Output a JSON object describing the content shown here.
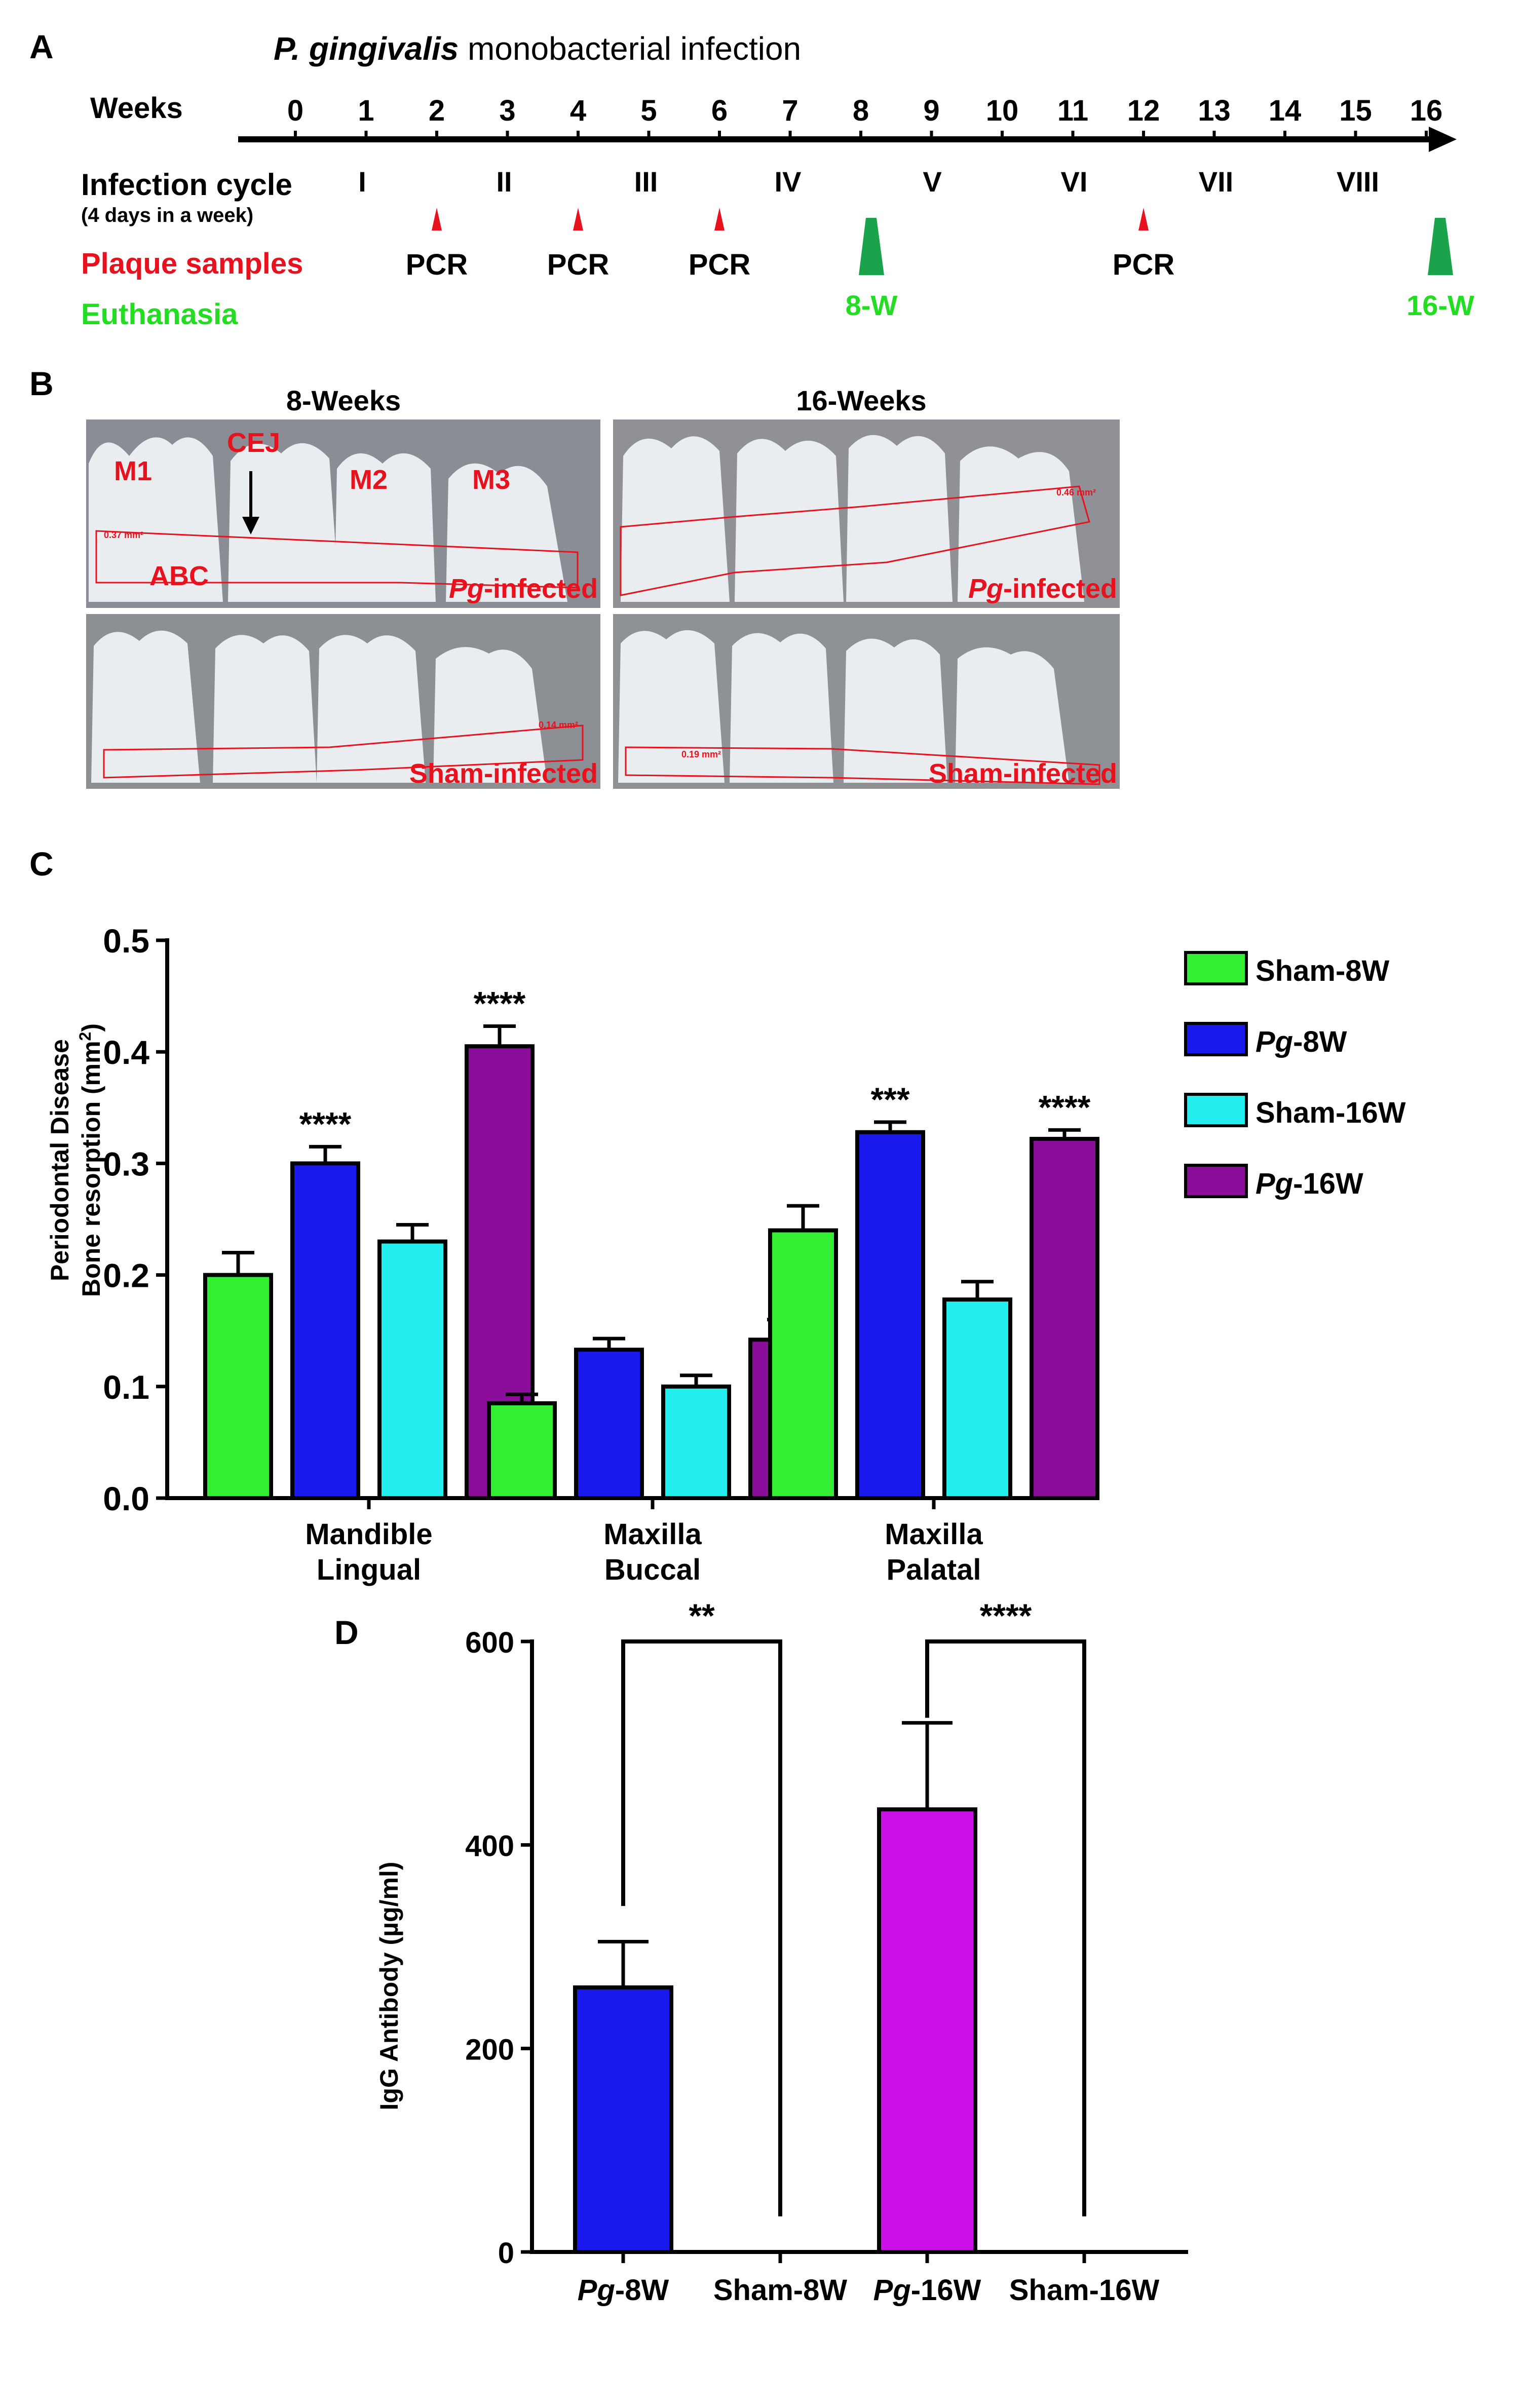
{
  "panel_labels": {
    "a": "A",
    "b": "B",
    "c": "C",
    "d": "D"
  },
  "timeline": {
    "title_italic": "P. gingivalis",
    "title_rest": " monobacterial infection",
    "weeks_label": "Weeks",
    "weeks": [
      "0",
      "1",
      "2",
      "3",
      "4",
      "5",
      "6",
      "7",
      "8",
      "9",
      "10",
      "11",
      "12",
      "13",
      "14",
      "15",
      "16"
    ],
    "infection_label": "Infection cycle",
    "infection_sub": "(4 days in a week)",
    "cycles": [
      "I",
      "II",
      "III",
      "IV",
      "V",
      "VI",
      "VII",
      "VIII"
    ],
    "plaque_label": "Plaque samples",
    "pcr_label": "PCR",
    "euthanasia_label": "Euthanasia",
    "euth_8": "8-W",
    "euth_16": "16-W",
    "colors": {
      "plaque": "#e8121f",
      "euthanasia": "#22dd22",
      "euth_marker": "#1aa34a"
    }
  },
  "photos": {
    "col_8": "8-Weeks",
    "col_16": "16-Weeks",
    "pg_infected_italic": "Pg",
    "pg_infected_rest": "-infected",
    "sham_infected": "Sham-infected",
    "m1": "M1",
    "m2": "M2",
    "m3": "M3",
    "cej": "CEJ",
    "abc": "ABC",
    "area_tl": "0.37 mm²",
    "area_tr": "0.46 mm²",
    "area_bl": "0.14 mm²",
    "area_br": "0.19 mm²"
  },
  "chart_data": [
    {
      "type": "bar",
      "title": "",
      "ylabel_line1": "Periodontal Disease",
      "ylabel_line2": "Bone resorption (mm",
      "ylabel_sup": "2",
      "ylabel_close": ")",
      "ylim": [
        0,
        0.5
      ],
      "yticks": [
        "0.0",
        "0.1",
        "0.2",
        "0.3",
        "0.4",
        "0.5"
      ],
      "categories": [
        [
          "Mandible",
          "Lingual"
        ],
        [
          "Maxilla",
          "Buccal"
        ],
        [
          "Maxilla",
          "Palatal"
        ]
      ],
      "series": [
        {
          "name": "Sham-8W",
          "color": "#33ee33",
          "values": [
            0.2,
            0.085,
            0.24
          ],
          "errors": [
            0.02,
            0.008,
            0.022
          ]
        },
        {
          "name": "Pg-8W",
          "color": "#1a1aee",
          "values": [
            0.3,
            0.133,
            0.328
          ],
          "errors": [
            0.015,
            0.01,
            0.009
          ]
        },
        {
          "name": "Sham-16W",
          "color": "#22eeee",
          "values": [
            0.23,
            0.1,
            0.178
          ],
          "errors": [
            0.015,
            0.01,
            0.016
          ]
        },
        {
          "name": "Pg-16W",
          "color": "#8a0e9a",
          "values": [
            0.405,
            0.142,
            0.322
          ],
          "errors": [
            0.018,
            0.018,
            0.008
          ]
        }
      ],
      "legend_italic": [
        "",
        "Pg",
        "",
        "Pg"
      ],
      "legend_rest": [
        "Sham-8W",
        "-8W",
        "Sham-16W",
        "-16W"
      ],
      "significance": [
        {
          "category": 0,
          "series": 1,
          "text": "****"
        },
        {
          "category": 0,
          "series": 3,
          "text": "****"
        },
        {
          "category": 2,
          "series": 1,
          "text": "***"
        },
        {
          "category": 2,
          "series": 3,
          "text": "****"
        }
      ]
    },
    {
      "type": "bar",
      "title": "",
      "ylabel": "IgG Antibody (µg/ml)",
      "ylim": [
        0,
        600
      ],
      "yticks": [
        "0",
        "200",
        "400",
        "600"
      ],
      "categories": [
        "Pg-8W",
        "Sham-8W",
        "Pg-16W",
        "Sham-16W"
      ],
      "cat_italic": [
        "Pg",
        "",
        "Pg",
        ""
      ],
      "cat_rest": [
        "-8W",
        "Sham-8W",
        "-16W",
        "Sham-16W"
      ],
      "values": [
        260,
        0,
        435,
        0
      ],
      "errors": [
        45,
        0,
        85,
        0
      ],
      "colors": [
        "#1a1aee",
        "#ffffff",
        "#cc10e8",
        "#ffffff"
      ],
      "significance": [
        {
          "from": 0,
          "to": 1,
          "text": "**"
        },
        {
          "from": 2,
          "to": 3,
          "text": "****"
        }
      ]
    }
  ]
}
